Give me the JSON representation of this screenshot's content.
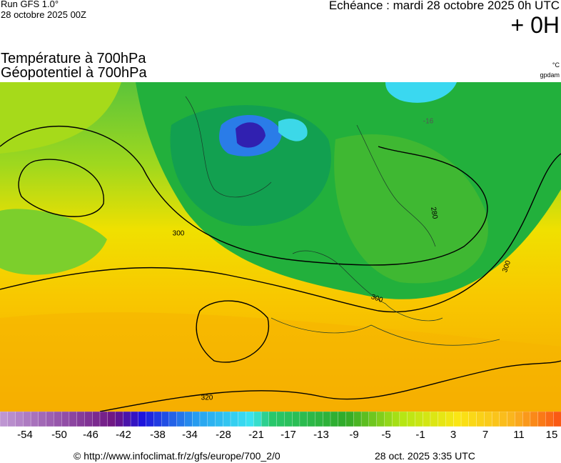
{
  "header": {
    "run": "Run GFS 1.0°",
    "run_date": "28 octobre 2025 00Z",
    "echeance": "Echéance : mardi 28 octobre 2025 0h UTC",
    "lead": "+ 0H"
  },
  "titles": {
    "temperature": "Température à 700hPa",
    "geopotential": "Géopotentiel à 700hPa",
    "unit_temp": "°C",
    "unit_geo": "gpdam"
  },
  "map": {
    "contour_labels": [
      "300",
      "300",
      "300",
      "280",
      "320",
      "-16"
    ]
  },
  "colorbar": {
    "labels": [
      "-54",
      "-50",
      "-46",
      "-42",
      "-38",
      "-34",
      "-28",
      "-21",
      "-17",
      "-13",
      "-9",
      "-5",
      "-1",
      "3",
      "7",
      "11",
      "15"
    ]
  },
  "footer": {
    "url": "© http://www.infoclimat.fr/z/gfs/europe/700_2/0",
    "time": "28 oct. 2025  3:35 UTC"
  }
}
